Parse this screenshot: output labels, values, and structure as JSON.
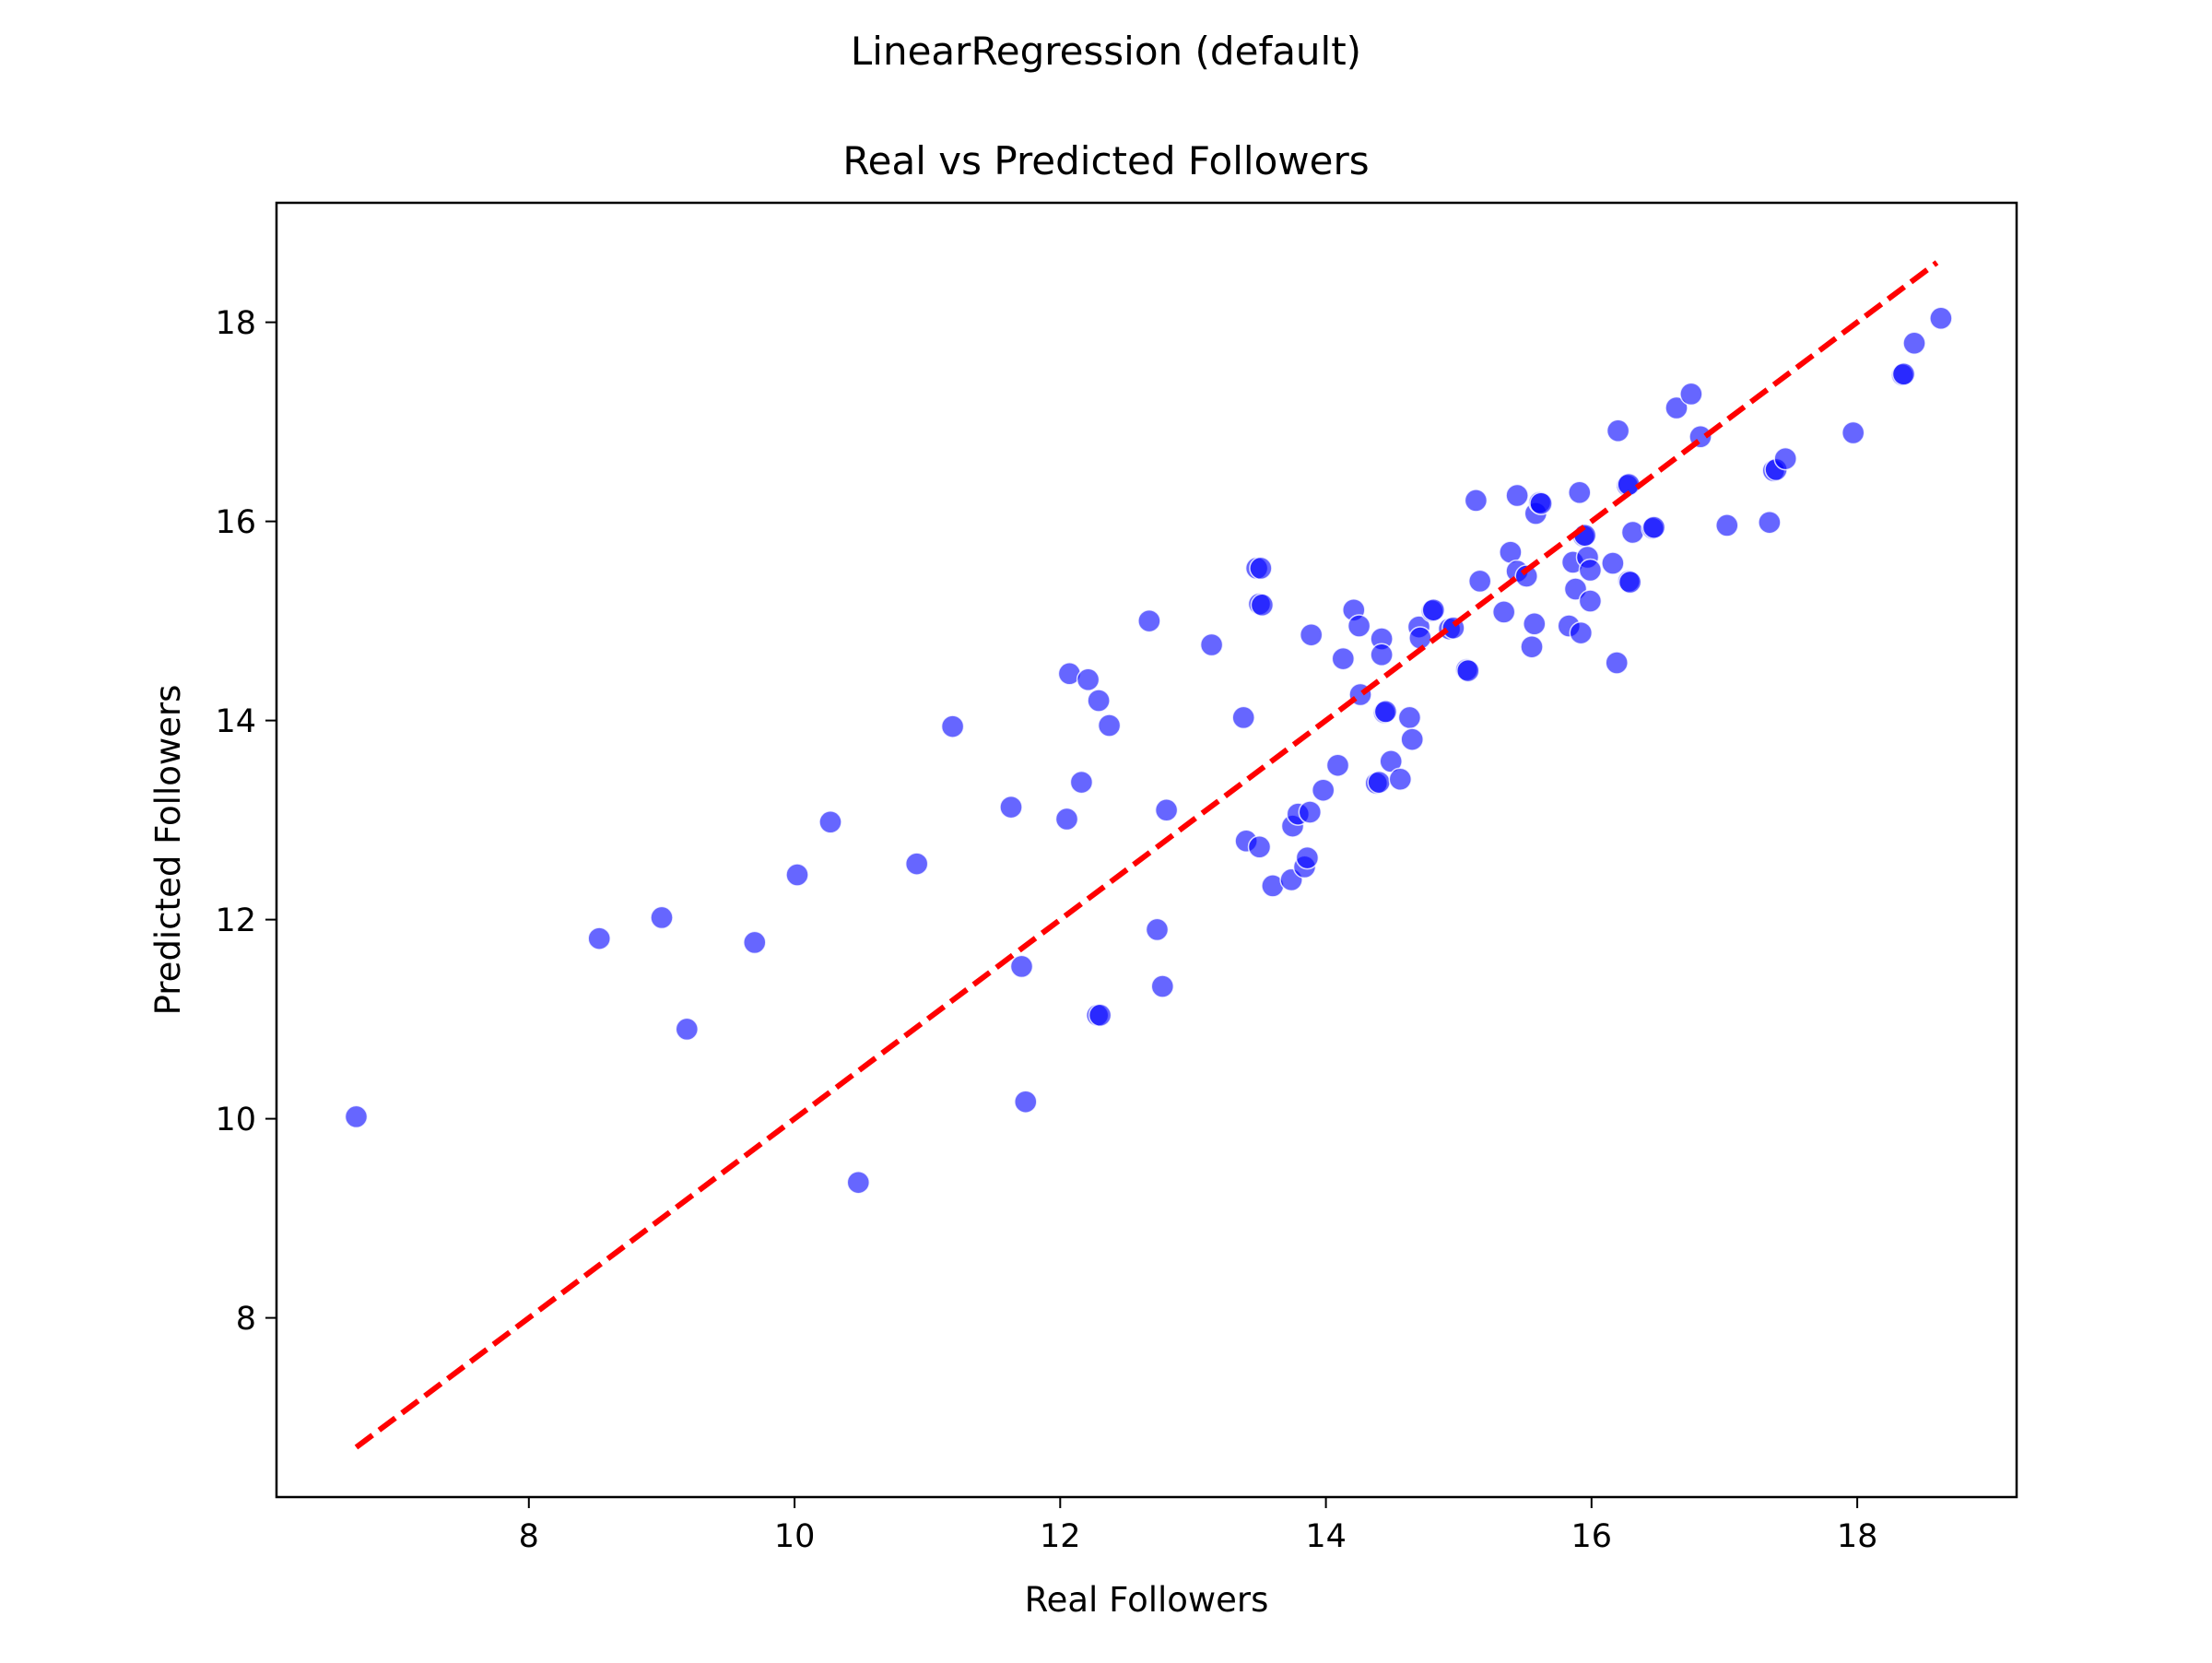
{
  "chart_data": {
    "type": "scatter",
    "suptitle": "LinearRegression (default)",
    "title": "Real vs Predicted Followers",
    "xlabel": "Real Followers",
    "ylabel": "Predicted Followers",
    "xlim": [
      6.1,
      19.2
    ],
    "ylim": [
      6.2,
      19.2
    ],
    "xticks": [
      8,
      10,
      12,
      14,
      16,
      18
    ],
    "yticks": [
      8,
      10,
      12,
      14,
      16,
      18
    ],
    "grid": false,
    "point_color": "#0000ff",
    "point_opacity": 0.6,
    "reference_line": {
      "color": "#ff0000",
      "style": "dashed",
      "x": [
        6.7,
        18.6
      ],
      "y": [
        6.7,
        18.6
      ]
    },
    "points": [
      [
        6.7,
        10.02
      ],
      [
        8.53,
        11.81
      ],
      [
        9.0,
        12.02
      ],
      [
        9.19,
        10.9
      ],
      [
        9.7,
        11.77
      ],
      [
        10.02,
        12.45
      ],
      [
        10.27,
        12.98
      ],
      [
        10.48,
        9.36
      ],
      [
        10.92,
        12.56
      ],
      [
        11.19,
        13.94
      ],
      [
        11.63,
        13.13
      ],
      [
        11.71,
        11.53
      ],
      [
        11.74,
        10.17
      ],
      [
        12.05,
        13.01
      ],
      [
        12.07,
        14.47
      ],
      [
        12.16,
        13.38
      ],
      [
        12.21,
        14.41
      ],
      [
        12.28,
        11.04
      ],
      [
        12.3,
        11.04
      ],
      [
        12.29,
        14.2
      ],
      [
        12.37,
        13.95
      ],
      [
        12.67,
        15.0
      ],
      [
        12.73,
        11.9
      ],
      [
        12.77,
        11.33
      ],
      [
        12.8,
        13.1
      ],
      [
        13.14,
        14.76
      ],
      [
        13.38,
        14.03
      ],
      [
        13.4,
        12.79
      ],
      [
        13.48,
        15.53
      ],
      [
        13.51,
        15.53
      ],
      [
        13.5,
        15.17
      ],
      [
        13.52,
        15.16
      ],
      [
        13.5,
        12.73
      ],
      [
        13.6,
        12.34
      ],
      [
        13.74,
        12.4
      ],
      [
        13.75,
        12.94
      ],
      [
        13.79,
        13.06
      ],
      [
        13.84,
        12.53
      ],
      [
        13.86,
        12.62
      ],
      [
        13.88,
        13.08
      ],
      [
        13.89,
        14.86
      ],
      [
        13.98,
        13.3
      ],
      [
        14.09,
        13.55
      ],
      [
        14.13,
        14.62
      ],
      [
        14.21,
        15.11
      ],
      [
        14.25,
        14.95
      ],
      [
        14.26,
        14.26
      ],
      [
        14.38,
        13.37
      ],
      [
        14.4,
        13.38
      ],
      [
        14.42,
        14.82
      ],
      [
        14.42,
        14.66
      ],
      [
        14.44,
        14.08
      ],
      [
        14.45,
        14.09
      ],
      [
        14.49,
        13.59
      ],
      [
        14.56,
        13.41
      ],
      [
        14.63,
        14.03
      ],
      [
        14.65,
        13.81
      ],
      [
        14.7,
        14.94
      ],
      [
        14.71,
        14.83
      ],
      [
        14.8,
        15.1
      ],
      [
        14.81,
        15.11
      ],
      [
        14.93,
        14.92
      ],
      [
        14.96,
        14.93
      ],
      [
        15.06,
        14.51
      ],
      [
        15.07,
        14.5
      ],
      [
        15.13,
        16.21
      ],
      [
        15.16,
        15.4
      ],
      [
        15.34,
        15.09
      ],
      [
        15.39,
        15.69
      ],
      [
        15.44,
        16.26
      ],
      [
        15.44,
        15.5
      ],
      [
        15.51,
        15.45
      ],
      [
        15.55,
        14.74
      ],
      [
        15.57,
        14.97
      ],
      [
        15.58,
        16.08
      ],
      [
        15.61,
        16.19
      ],
      [
        15.62,
        16.18
      ],
      [
        15.83,
        14.95
      ],
      [
        15.86,
        15.59
      ],
      [
        15.88,
        15.32
      ],
      [
        15.91,
        16.29
      ],
      [
        15.92,
        14.88
      ],
      [
        15.94,
        15.85
      ],
      [
        15.95,
        15.86
      ],
      [
        15.97,
        15.64
      ],
      [
        15.99,
        15.2
      ],
      [
        15.99,
        15.51
      ],
      [
        16.16,
        15.58
      ],
      [
        16.19,
        14.58
      ],
      [
        16.2,
        16.91
      ],
      [
        16.27,
        16.36
      ],
      [
        16.28,
        16.37
      ],
      [
        16.28,
        15.4
      ],
      [
        16.29,
        15.39
      ],
      [
        16.31,
        15.89
      ],
      [
        16.46,
        15.93
      ],
      [
        16.47,
        15.94
      ],
      [
        16.64,
        17.14
      ],
      [
        16.75,
        17.28
      ],
      [
        16.82,
        16.85
      ],
      [
        17.02,
        15.96
      ],
      [
        17.34,
        15.99
      ],
      [
        17.37,
        16.51
      ],
      [
        17.39,
        16.52
      ],
      [
        17.46,
        16.63
      ],
      [
        17.97,
        16.89
      ],
      [
        18.34,
        17.47
      ],
      [
        18.35,
        17.48
      ],
      [
        18.43,
        17.79
      ],
      [
        18.63,
        18.04
      ]
    ]
  }
}
